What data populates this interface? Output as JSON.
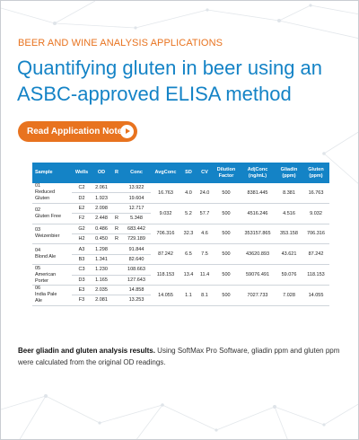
{
  "header": {
    "eyebrow": "BEER AND WINE ANALYSIS APPLICATIONS",
    "title": "Quantifying gluten in beer using an ASBC-approved ELISA method"
  },
  "cta": {
    "label": "Read Application Note",
    "icon": "play-icon"
  },
  "table": {
    "columns": [
      "Sample",
      "Wells",
      "OD",
      "R",
      "Conc",
      "AvgConc",
      "SD",
      "CV",
      "Dilution Factor",
      "AdjConc (ng/mL)",
      "Gliadin (ppm)",
      "Gluten (ppm)"
    ],
    "groups": [
      {
        "sample": "01\nReduced\nGluten",
        "rows": [
          {
            "well": "C2",
            "od": "2.061",
            "r": "",
            "conc": "13.922"
          },
          {
            "well": "D2",
            "od": "1.923",
            "r": "",
            "conc": "19.604"
          }
        ],
        "avg": "16.763",
        "sd": "4.0",
        "cv": "24.0",
        "dil": "500",
        "adj": "8381.445",
        "gliadin": "8.381",
        "gluten": "16.763"
      },
      {
        "sample": "02\nGluten Free",
        "rows": [
          {
            "well": "E2",
            "od": "2.098",
            "r": "",
            "conc": "12.717"
          },
          {
            "well": "F2",
            "od": "2.448",
            "r": "R",
            "conc": "5.348"
          }
        ],
        "avg": "9.032",
        "sd": "5.2",
        "cv": "57.7",
        "dil": "500",
        "adj": "4516.246",
        "gliadin": "4.516",
        "gluten": "9.032"
      },
      {
        "sample": "03\nWeizenbier",
        "rows": [
          {
            "well": "G2",
            "od": "0.486",
            "r": "R",
            "conc": "683.442"
          },
          {
            "well": "H2",
            "od": "0.450",
            "r": "R",
            "conc": "729.189"
          }
        ],
        "avg": "706.316",
        "sd": "32.3",
        "cv": "4.6",
        "dil": "500",
        "adj": "353157.865",
        "gliadin": "353.158",
        "gluten": "706.316"
      },
      {
        "sample": "04\nBlond Ale",
        "rows": [
          {
            "well": "A3",
            "od": "1.298",
            "r": "",
            "conc": "91.844"
          },
          {
            "well": "B3",
            "od": "1.341",
            "r": "",
            "conc": "82.640"
          }
        ],
        "avg": "87.242",
        "sd": "6.5",
        "cv": "7.5",
        "dil": "500",
        "adj": "43620.893",
        "gliadin": "43.621",
        "gluten": "87.242"
      },
      {
        "sample": "05\nAmerican\nPorter",
        "rows": [
          {
            "well": "C3",
            "od": "1.230",
            "r": "",
            "conc": "108.663"
          },
          {
            "well": "D3",
            "od": "1.165",
            "r": "",
            "conc": "127.643"
          }
        ],
        "avg": "118.153",
        "sd": "13.4",
        "cv": "11.4",
        "dil": "500",
        "adj": "59076.491",
        "gliadin": "59.076",
        "gluten": "118.153"
      },
      {
        "sample": "06\nIndia Pale\nAle",
        "rows": [
          {
            "well": "E3",
            "od": "2.035",
            "r": "",
            "conc": "14.858"
          },
          {
            "well": "F3",
            "od": "2.081",
            "r": "",
            "conc": "13.253"
          }
        ],
        "avg": "14.055",
        "sd": "1.1",
        "cv": "8.1",
        "dil": "500",
        "adj": "7027.733",
        "gliadin": "7.028",
        "gluten": "14.055"
      }
    ]
  },
  "caption": {
    "bold": "Beer gliadin and gluten analysis results.",
    "text": " Using SoftMax Pro Software, gliadin ppm and gluten ppm were calculated from the original OD readings."
  },
  "colors": {
    "accent_orange": "#e8731f",
    "title_blue": "#1483c6",
    "header_blue": "#1483c6"
  }
}
